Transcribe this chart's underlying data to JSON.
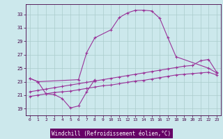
{
  "background_color": "#cce8ec",
  "grid_color": "#aacccc",
  "line_color": "#993399",
  "xlabel": "Windchill (Refroidissement éolien,°C)",
  "xlabel_bg": "#660066",
  "xlim": [
    -0.5,
    23.5
  ],
  "ylim": [
    18.0,
    34.5
  ],
  "yticks": [
    19,
    21,
    23,
    25,
    27,
    29,
    31,
    33
  ],
  "xticks": [
    0,
    1,
    2,
    3,
    4,
    5,
    6,
    7,
    8,
    9,
    10,
    11,
    12,
    13,
    14,
    15,
    16,
    17,
    18,
    19,
    20,
    21,
    22,
    23
  ],
  "l1x": [
    0,
    1,
    2,
    3,
    4,
    5,
    6,
    7,
    8
  ],
  "l1y": [
    23.5,
    23.0,
    21.2,
    21.1,
    20.5,
    19.1,
    19.4,
    21.5,
    23.3
  ],
  "l2x": [
    0,
    1,
    6,
    7,
    8,
    10,
    11,
    12,
    13,
    14,
    15,
    16,
    17,
    18,
    22,
    23
  ],
  "l2y": [
    23.5,
    23.0,
    23.3,
    27.3,
    29.5,
    30.7,
    32.5,
    33.2,
    33.6,
    33.6,
    33.5,
    32.4,
    29.5,
    26.7,
    25.0,
    24.3
  ],
  "l3x": [
    0,
    1,
    2,
    3,
    4,
    5,
    6,
    7,
    8,
    9,
    10,
    11,
    12,
    13,
    14,
    15,
    16,
    17,
    18,
    19,
    20,
    21,
    22,
    23
  ],
  "l3y": [
    21.5,
    21.7,
    21.9,
    22.1,
    22.3,
    22.5,
    22.7,
    22.9,
    23.1,
    23.3,
    23.5,
    23.7,
    23.9,
    24.1,
    24.3,
    24.5,
    24.7,
    24.9,
    25.1,
    25.3,
    25.4,
    26.1,
    26.3,
    24.4
  ],
  "l4x": [
    0,
    1,
    2,
    3,
    4,
    5,
    6,
    7,
    8,
    9,
    10,
    11,
    12,
    13,
    14,
    15,
    16,
    17,
    18,
    19,
    20,
    21,
    22,
    23
  ],
  "l4y": [
    20.8,
    21.0,
    21.2,
    21.4,
    21.5,
    21.6,
    21.8,
    22.0,
    22.2,
    22.4,
    22.5,
    22.7,
    22.9,
    23.1,
    23.2,
    23.4,
    23.6,
    23.8,
    24.0,
    24.1,
    24.2,
    24.3,
    24.4,
    24.0
  ]
}
